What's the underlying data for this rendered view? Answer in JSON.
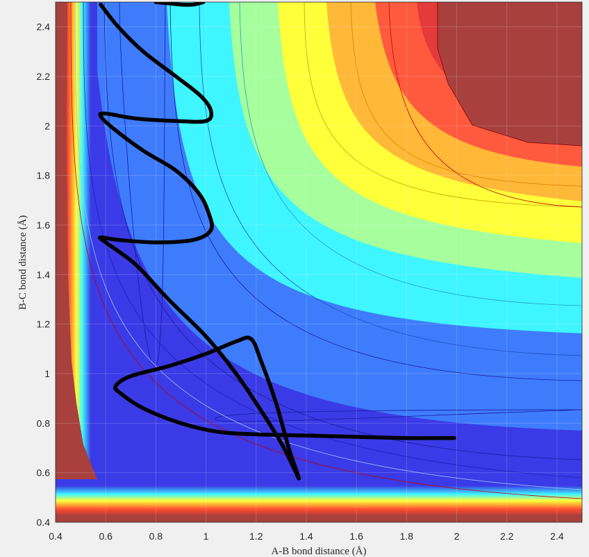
{
  "chart_data": {
    "type": "contour",
    "title": "",
    "xlabel": "A-B bond distance (Å)",
    "ylabel": "B-C bond distance (Å)",
    "xlim": [
      0.4,
      2.5
    ],
    "ylim": [
      0.4,
      2.5
    ],
    "xticks": [
      "0.4",
      "0.6",
      "0.8",
      "1",
      "1.2",
      "1.4",
      "1.6",
      "1.8",
      "2",
      "2.2",
      "2.4"
    ],
    "yticks": [
      "0.4",
      "0.6",
      "0.8",
      "1",
      "1.2",
      "1.4",
      "1.6",
      "1.8",
      "2",
      "2.2",
      "2.4"
    ],
    "grid": true,
    "colormap": "jet",
    "colors": {
      "deep_blue": "#3a3ae0",
      "dark_red": "#a8403e",
      "trajectory": "#000000"
    },
    "trajectory": {
      "x": [
        1.99,
        1.8,
        1.6,
        1.4,
        1.2,
        1.05,
        0.9,
        0.75,
        0.66,
        0.64,
        0.7,
        0.85,
        1.0,
        1.12,
        1.18,
        1.22,
        1.28,
        1.33,
        1.37,
        1.35,
        1.3,
        1.22,
        1.12,
        1.0,
        0.85,
        0.72,
        0.6,
        0.58,
        0.65,
        0.8,
        0.95,
        1.02,
        1.01,
        0.97,
        0.88,
        0.75,
        0.63,
        0.58,
        0.6,
        0.72,
        0.88,
        1.0,
        1.02,
        0.98,
        0.88,
        0.75,
        0.65,
        0.58
      ],
      "y": [
        0.74,
        0.74,
        0.745,
        0.75,
        0.755,
        0.765,
        0.8,
        0.86,
        0.92,
        0.95,
        0.99,
        1.03,
        1.08,
        1.13,
        1.14,
        1.05,
        0.88,
        0.7,
        0.58,
        0.62,
        0.72,
        0.85,
        1.0,
        1.15,
        1.3,
        1.44,
        1.53,
        1.55,
        1.54,
        1.53,
        1.54,
        1.58,
        1.65,
        1.73,
        1.82,
        1.9,
        1.99,
        2.04,
        2.05,
        2.03,
        2.02,
        2.02,
        2.06,
        2.12,
        2.2,
        2.3,
        2.4,
        2.49
      ]
    },
    "trajectory_top": {
      "x": [
        0.8,
        0.85,
        0.9,
        0.95,
        0.99
      ],
      "y": [
        2.5,
        2.495,
        2.49,
        2.49,
        2.5
      ]
    }
  }
}
